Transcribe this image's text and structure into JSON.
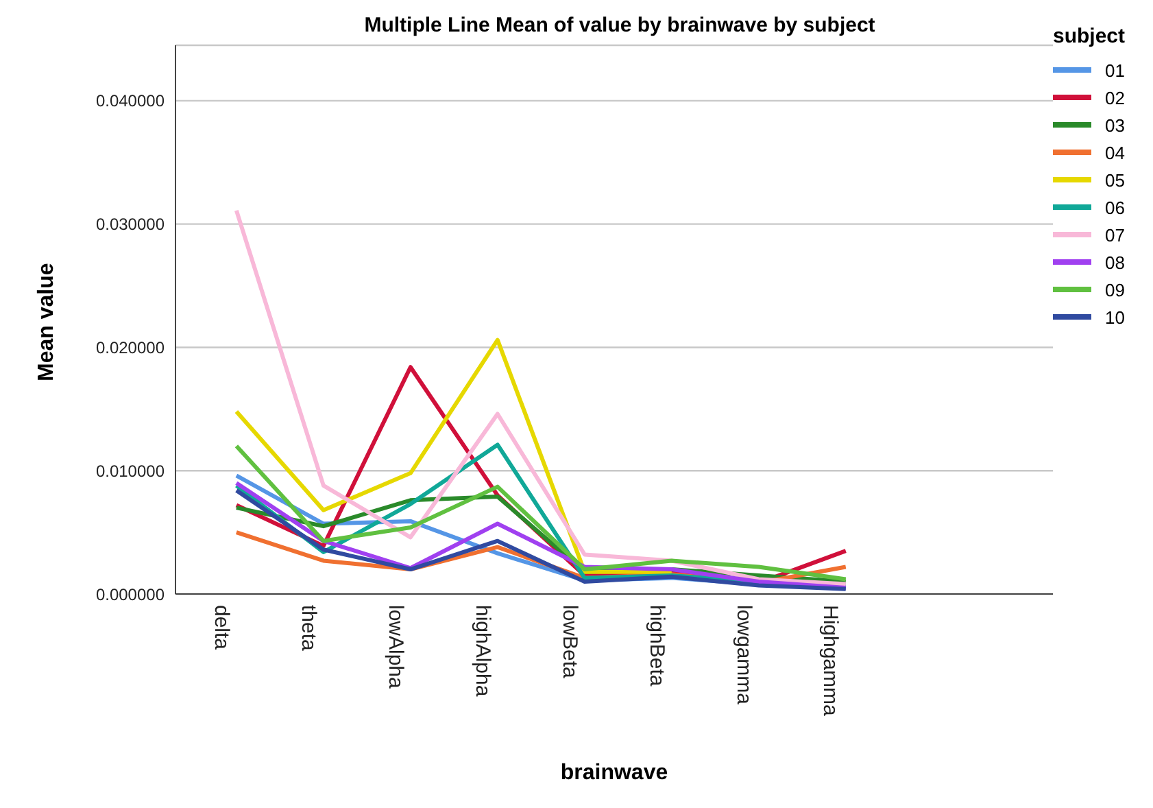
{
  "chart_data": {
    "type": "line",
    "title": "Multiple Line Mean of value by brainwave by subject",
    "xlabel": "brainwave",
    "ylabel": "Mean value",
    "legend_title": "subject",
    "legend": "top right",
    "grid": "y",
    "marker": "none",
    "categories": [
      "delta",
      "theta",
      "lowAlpha",
      "highAlpha",
      "lowBeta",
      "highBeta",
      "lowgamma",
      "Highgamma"
    ],
    "ylim": [
      0,
      0.0445
    ],
    "yticks": [
      {
        "value": 0,
        "label": "0.000000"
      },
      {
        "value": 0.01,
        "label": "0.010000"
      },
      {
        "value": 0.02,
        "label": "0.020000"
      },
      {
        "value": 0.03,
        "label": "0.030000"
      },
      {
        "value": 0.04,
        "label": "0.040000"
      }
    ],
    "series": [
      {
        "name": "01",
        "color": "#5596e6",
        "values": [
          0.0096,
          0.0057,
          0.0059,
          0.0033,
          0.0011,
          0.0013,
          0.0008,
          0.0005
        ]
      },
      {
        "name": "02",
        "color": "#d0103a",
        "values": [
          0.0072,
          0.0039,
          0.0184,
          0.008,
          0.0015,
          0.0018,
          0.0009,
          0.0035
        ]
      },
      {
        "name": "03",
        "color": "#2a8a2a",
        "values": [
          0.007,
          0.0055,
          0.0076,
          0.0079,
          0.0018,
          0.002,
          0.0015,
          0.001
        ]
      },
      {
        "name": "04",
        "color": "#f07030",
        "values": [
          0.005,
          0.0027,
          0.002,
          0.0038,
          0.0013,
          0.0016,
          0.0009,
          0.0022
        ]
      },
      {
        "name": "05",
        "color": "#e6d800",
        "values": [
          0.0148,
          0.0068,
          0.0098,
          0.0206,
          0.0018,
          0.0018,
          null,
          null
        ]
      },
      {
        "name": "06",
        "color": "#10a898",
        "values": [
          0.0088,
          0.0034,
          0.0073,
          0.0121,
          0.0013,
          0.0015,
          0.001,
          0.0006
        ]
      },
      {
        "name": "07",
        "color": "#f8b8d8",
        "values": [
          0.0311,
          0.0088,
          0.0046,
          0.0146,
          0.0032,
          0.0027,
          0.0012,
          0.0008
        ]
      },
      {
        "name": "08",
        "color": "#a040f0",
        "values": [
          0.009,
          0.0043,
          0.0021,
          0.0057,
          0.0022,
          0.002,
          0.001,
          0.0005
        ]
      },
      {
        "name": "09",
        "color": "#60c040",
        "values": [
          0.012,
          0.0043,
          0.0054,
          0.0087,
          0.002,
          0.0027,
          0.0022,
          0.0012
        ]
      },
      {
        "name": "10",
        "color": "#304aa0",
        "values": [
          0.0084,
          0.0036,
          0.002,
          0.0043,
          0.001,
          0.0014,
          0.0007,
          0.0004
        ]
      }
    ]
  }
}
